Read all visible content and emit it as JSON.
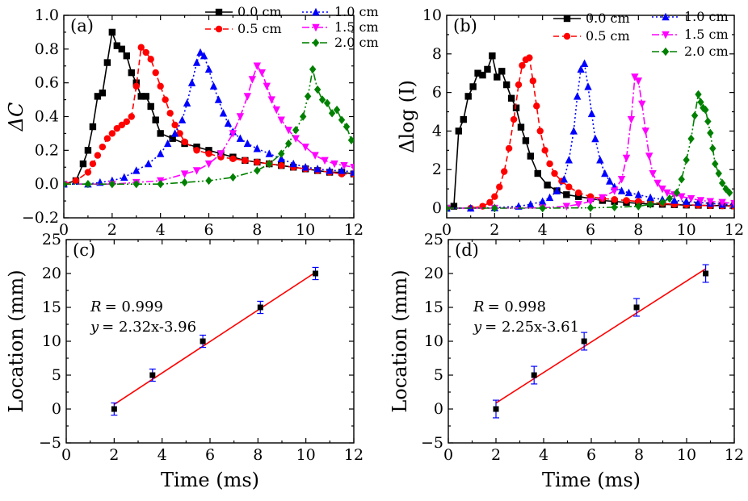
{
  "chart_data": [
    {
      "panel": "a",
      "type": "line",
      "panel_label": "(a)",
      "ylabel": "ΔC",
      "xlabel": "",
      "xlim": [
        0,
        12
      ],
      "ylim": [
        -0.2,
        1.0
      ],
      "xticks": [
        0,
        2,
        4,
        6,
        8,
        10,
        12
      ],
      "yticks": [
        -0.2,
        0.0,
        0.2,
        0.4,
        0.6,
        0.8,
        1.0
      ],
      "yticklabels": [
        "−0.2",
        "0.0",
        "0.2",
        "0.4",
        "0.6",
        "0.8",
        "1.0"
      ],
      "legend": [
        "0.0 cm",
        "0.5 cm",
        "1.0 cm",
        "1.5 cm",
        "2.0 cm"
      ],
      "series": [
        {
          "name": "0.0 cm",
          "color": "#000000",
          "dash": "",
          "marker": "square",
          "x": [
            0,
            0.5,
            0.8,
            1.0,
            1.2,
            1.4,
            1.6,
            1.8,
            2.0,
            2.2,
            2.4,
            2.6,
            2.8,
            3.0,
            3.2,
            3.4,
            3.6,
            3.8,
            4.0,
            4.5,
            5.0,
            5.5,
            6.0,
            6.5,
            7.0,
            7.5,
            8.0,
            8.5,
            9.0,
            9.5,
            10.0,
            10.5,
            11.0,
            11.5,
            12.0
          ],
          "y": [
            0.0,
            0.02,
            0.12,
            0.2,
            0.34,
            0.52,
            0.54,
            0.72,
            0.9,
            0.82,
            0.8,
            0.76,
            0.66,
            0.6,
            0.52,
            0.52,
            0.46,
            0.38,
            0.3,
            0.27,
            0.24,
            0.22,
            0.2,
            0.18,
            0.16,
            0.14,
            0.13,
            0.12,
            0.11,
            0.1,
            0.09,
            0.08,
            0.07,
            0.07,
            0.06
          ]
        },
        {
          "name": "0.5 cm",
          "color": "#ff0000",
          "dash": "7,4",
          "marker": "circle",
          "x": [
            0,
            0.5,
            1.0,
            1.2,
            1.4,
            1.6,
            1.8,
            2.0,
            2.2,
            2.4,
            2.6,
            2.8,
            3.0,
            3.2,
            3.4,
            3.6,
            3.8,
            4.0,
            4.2,
            4.4,
            4.6,
            4.8,
            5.0,
            5.5,
            6.0,
            6.5,
            7.0,
            7.5,
            8.0,
            8.5,
            9.0,
            9.5,
            10.0,
            10.5,
            11.0,
            11.5,
            12.0
          ],
          "y": [
            0.0,
            0.02,
            0.07,
            0.12,
            0.17,
            0.22,
            0.27,
            0.3,
            0.33,
            0.35,
            0.37,
            0.4,
            0.58,
            0.81,
            0.78,
            0.74,
            0.66,
            0.58,
            0.5,
            0.42,
            0.35,
            0.3,
            0.25,
            0.2,
            0.18,
            0.16,
            0.15,
            0.14,
            0.13,
            0.12,
            0.11,
            0.1,
            0.09,
            0.08,
            0.07,
            0.06,
            0.06
          ]
        },
        {
          "name": "1.0 cm",
          "color": "#0000ff",
          "dash": "2,3",
          "marker": "triangle-up",
          "x": [
            0,
            1.0,
            1.5,
            2.0,
            2.5,
            3.0,
            3.5,
            4.0,
            4.3,
            4.6,
            4.9,
            5.1,
            5.3,
            5.5,
            5.65,
            5.8,
            6.0,
            6.2,
            6.4,
            6.6,
            6.8,
            7.0,
            7.3,
            7.6,
            8.0,
            8.5,
            9.0,
            9.5,
            10.0,
            10.5,
            11.0,
            11.5,
            12.0
          ],
          "y": [
            0.0,
            0.0,
            0.01,
            0.02,
            0.04,
            0.08,
            0.12,
            0.18,
            0.24,
            0.3,
            0.38,
            0.48,
            0.6,
            0.72,
            0.78,
            0.76,
            0.68,
            0.58,
            0.5,
            0.42,
            0.36,
            0.31,
            0.27,
            0.24,
            0.21,
            0.18,
            0.15,
            0.12,
            0.1,
            0.09,
            0.08,
            0.08,
            0.07
          ]
        },
        {
          "name": "1.5 cm",
          "color": "#ff00ff",
          "dash": "9,3,2,3",
          "marker": "triangle-down",
          "x": [
            0,
            2.0,
            3.0,
            4.0,
            5.0,
            5.5,
            6.0,
            6.5,
            7.0,
            7.3,
            7.6,
            7.8,
            8.0,
            8.2,
            8.4,
            8.6,
            8.8,
            9.0,
            9.3,
            9.6,
            10.0,
            10.4,
            10.8,
            11.2,
            11.6,
            12.0
          ],
          "y": [
            0.0,
            0.0,
            0.01,
            0.02,
            0.06,
            0.08,
            0.12,
            0.18,
            0.3,
            0.4,
            0.52,
            0.62,
            0.7,
            0.66,
            0.58,
            0.5,
            0.44,
            0.38,
            0.32,
            0.27,
            0.22,
            0.17,
            0.14,
            0.12,
            0.11,
            0.1
          ]
        },
        {
          "name": "2.0 cm",
          "color": "#008000",
          "dash": "9,3,2,3,2,3",
          "marker": "diamond",
          "x": [
            0,
            1.0,
            2.0,
            3.0,
            4.0,
            5.0,
            6.0,
            7.0,
            8.0,
            8.5,
            9.0,
            9.3,
            9.6,
            9.9,
            10.1,
            10.3,
            10.5,
            10.7,
            10.9,
            11.1,
            11.3,
            11.5,
            11.7,
            11.9
          ],
          "y": [
            0.0,
            0.0,
            0.0,
            0.0,
            0.0,
            0.01,
            0.02,
            0.04,
            0.08,
            0.12,
            0.18,
            0.24,
            0.32,
            0.4,
            0.52,
            0.68,
            0.56,
            0.5,
            0.48,
            0.42,
            0.44,
            0.38,
            0.34,
            0.26
          ]
        }
      ]
    },
    {
      "panel": "b",
      "type": "line",
      "panel_label": "(b)",
      "ylabel": "Δlog (I)",
      "xlabel": "",
      "xlim": [
        0,
        12
      ],
      "ylim": [
        -0.5,
        10
      ],
      "xticks": [
        0,
        2,
        4,
        6,
        8,
        10,
        12
      ],
      "yticks": [
        0,
        2,
        4,
        6,
        8,
        10
      ],
      "yticklabels": [
        "0",
        "2",
        "4",
        "6",
        "8",
        "10"
      ],
      "legend": [
        "0.0 cm",
        "0.5 cm",
        "1.0 cm",
        "1.5 cm",
        "2.0 cm"
      ],
      "series": [
        {
          "name": "0.0 cm",
          "color": "#000000",
          "dash": "",
          "marker": "square",
          "x": [
            0,
            0.3,
            0.5,
            0.7,
            0.9,
            1.1,
            1.3,
            1.5,
            1.7,
            1.9,
            2.1,
            2.3,
            2.5,
            2.7,
            2.9,
            3.1,
            3.3,
            3.5,
            3.8,
            4.2,
            4.6,
            5.0,
            5.5,
            6.0,
            6.5,
            7.0,
            7.5,
            8.0,
            8.5,
            9.0,
            9.5,
            10.0,
            10.5,
            11.0,
            11.5,
            12.0
          ],
          "y": [
            0.0,
            0.1,
            4.0,
            4.6,
            5.8,
            6.3,
            7.0,
            6.9,
            7.2,
            7.9,
            6.8,
            7.1,
            6.4,
            5.7,
            5.2,
            4.2,
            3.5,
            2.7,
            1.8,
            1.2,
            0.9,
            0.7,
            0.6,
            0.5,
            0.4,
            0.35,
            0.3,
            0.25,
            0.22,
            0.2,
            0.18,
            0.16,
            0.15,
            0.14,
            0.13,
            0.12
          ]
        },
        {
          "name": "0.5 cm",
          "color": "#ff0000",
          "dash": "7,4",
          "marker": "circle",
          "x": [
            0,
            1.0,
            1.5,
            1.8,
            2.0,
            2.2,
            2.4,
            2.6,
            2.8,
            3.0,
            3.15,
            3.3,
            3.45,
            3.6,
            3.75,
            3.9,
            4.1,
            4.3,
            4.5,
            4.8,
            5.1,
            5.5,
            6.0,
            6.5,
            7.0,
            7.5,
            8.0,
            8.5,
            9.0,
            9.5,
            10.0,
            10.5,
            11.0,
            11.5,
            12.0
          ],
          "y": [
            0.0,
            0.0,
            0.1,
            0.3,
            0.6,
            1.1,
            1.9,
            3.1,
            4.6,
            6.4,
            7.4,
            7.7,
            7.8,
            6.6,
            5.3,
            4.0,
            3.0,
            2.3,
            1.8,
            1.4,
            1.1,
            0.8,
            0.6,
            0.5,
            0.45,
            0.4,
            0.35,
            0.3,
            0.25,
            0.2,
            0.18,
            0.15,
            0.13,
            0.12,
            0.1
          ]
        },
        {
          "name": "1.0 cm",
          "color": "#0000ff",
          "dash": "2,3",
          "marker": "triangle-up",
          "x": [
            0,
            1.0,
            2.0,
            3.0,
            3.5,
            4.0,
            4.3,
            4.6,
            4.9,
            5.1,
            5.3,
            5.45,
            5.6,
            5.75,
            5.9,
            6.05,
            6.2,
            6.4,
            6.6,
            6.8,
            7.0,
            7.3,
            7.6,
            8.0,
            8.5,
            9.0,
            9.5,
            10.0,
            10.5,
            11.0,
            11.5,
            12.0
          ],
          "y": [
            0.0,
            0.0,
            0.02,
            0.1,
            0.2,
            0.35,
            0.55,
            0.9,
            1.5,
            2.5,
            4.0,
            5.8,
            7.2,
            7.5,
            6.3,
            4.9,
            3.6,
            2.5,
            1.8,
            1.4,
            1.1,
            0.9,
            0.8,
            0.7,
            0.55,
            0.45,
            0.4,
            0.35,
            0.3,
            0.25,
            0.2,
            0.2
          ]
        },
        {
          "name": "1.5 cm",
          "color": "#ff00ff",
          "dash": "9,3,2,3",
          "marker": "triangle-down",
          "x": [
            0,
            2.0,
            4.0,
            5.0,
            5.5,
            6.0,
            6.5,
            7.0,
            7.3,
            7.5,
            7.7,
            7.85,
            8.0,
            8.15,
            8.3,
            8.45,
            8.6,
            8.8,
            9.0,
            9.2,
            9.5,
            9.8,
            10.2,
            10.6,
            11.0,
            11.5,
            12.0
          ],
          "y": [
            0.0,
            0.0,
            0.02,
            0.1,
            0.2,
            0.35,
            0.55,
            0.9,
            1.5,
            2.6,
            4.6,
            6.8,
            6.6,
            5.4,
            4.0,
            2.7,
            1.8,
            1.3,
            1.0,
            0.8,
            0.7,
            0.6,
            0.5,
            0.4,
            0.35,
            0.3,
            0.25
          ]
        },
        {
          "name": "2.0 cm",
          "color": "#008000",
          "dash": "9,3,2,3,2,3",
          "marker": "diamond",
          "x": [
            0,
            2.0,
            4.0,
            6.0,
            7.0,
            8.0,
            8.5,
            9.0,
            9.3,
            9.6,
            9.8,
            10.0,
            10.2,
            10.35,
            10.5,
            10.6,
            10.7,
            10.8,
            10.9,
            11.0,
            11.1,
            11.2,
            11.35,
            11.5,
            11.65,
            11.8
          ],
          "y": [
            0.0,
            0.0,
            0.0,
            0.02,
            0.05,
            0.1,
            0.2,
            0.3,
            0.5,
            0.8,
            1.5,
            2.5,
            3.6,
            4.8,
            5.9,
            5.5,
            5.2,
            5.1,
            4.5,
            3.9,
            3.1,
            2.3,
            1.8,
            1.3,
            1.0,
            0.8
          ]
        }
      ]
    },
    {
      "panel": "c",
      "type": "scatter",
      "panel_label": "(c)",
      "ylabel": "Location (mm)",
      "xlabel": "Time (ms)",
      "xlim": [
        0,
        12
      ],
      "ylim": [
        -5,
        25
      ],
      "xticks": [
        0,
        2,
        4,
        6,
        8,
        10,
        12
      ],
      "yticks": [
        -5,
        0,
        5,
        10,
        15,
        20,
        25
      ],
      "yticklabels": [
        "−5",
        "0",
        "5",
        "10",
        "15",
        "20",
        "25"
      ],
      "points": {
        "x": [
          2.0,
          3.6,
          5.7,
          8.1,
          10.4
        ],
        "y": [
          0,
          5,
          10,
          15,
          20
        ],
        "yerr": [
          0.9,
          0.9,
          0.9,
          0.9,
          0.9
        ]
      },
      "fit": {
        "slope": 2.32,
        "intercept": -3.96,
        "x_range": [
          2.0,
          10.4
        ]
      },
      "annotations": {
        "r_label": "R",
        "r_value": "= 0.999",
        "y_label": "y",
        "eq_rest": "= 2.32x-3.96"
      }
    },
    {
      "panel": "d",
      "type": "scatter",
      "panel_label": "(d)",
      "ylabel": "Location (mm)",
      "xlabel": "Time (ms)",
      "xlim": [
        0,
        12
      ],
      "ylim": [
        -5,
        25
      ],
      "xticks": [
        0,
        2,
        4,
        6,
        8,
        10,
        12
      ],
      "yticks": [
        -5,
        0,
        5,
        10,
        15,
        20,
        25
      ],
      "yticklabels": [
        "−5",
        "0",
        "5",
        "10",
        "15",
        "20",
        "25"
      ],
      "points": {
        "x": [
          2.0,
          3.6,
          5.7,
          7.9,
          10.8
        ],
        "y": [
          0,
          5,
          10,
          15,
          20
        ],
        "yerr": [
          1.3,
          1.3,
          1.3,
          1.3,
          1.3
        ]
      },
      "fit": {
        "slope": 2.25,
        "intercept": -3.61,
        "x_range": [
          2.0,
          10.8
        ]
      },
      "annotations": {
        "r_label": "R",
        "r_value": "= 0.998",
        "y_label": "y",
        "eq_rest": "= 2.25x-3.61"
      }
    }
  ]
}
